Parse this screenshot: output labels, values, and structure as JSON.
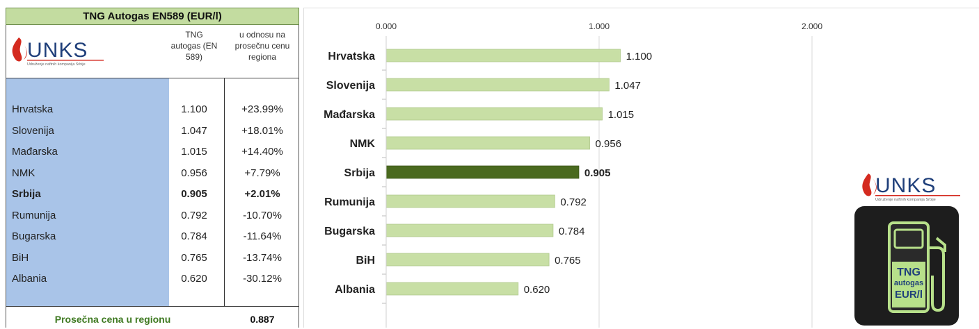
{
  "table": {
    "title": "TNG Autogas EN589 (EUR/l)",
    "col_price_header": "TNG autogas (EN 589)",
    "col_relative_header": "u odnosu na prosečnu cenu regiona",
    "rows": [
      {
        "country": "Hrvatska",
        "price": "1.100",
        "relative": "+23.99%",
        "highlight": false
      },
      {
        "country": "Slovenija",
        "price": "1.047",
        "relative": "+18.01%",
        "highlight": false
      },
      {
        "country": "Mađarska",
        "price": "1.015",
        "relative": "+14.40%",
        "highlight": false
      },
      {
        "country": "NMK",
        "price": "0.956",
        "relative": "+7.79%",
        "highlight": false
      },
      {
        "country": "Srbija",
        "price": "0.905",
        "relative": "+2.01%",
        "highlight": true
      },
      {
        "country": "Rumunija",
        "price": "0.792",
        "relative": "-10.70%",
        "highlight": false
      },
      {
        "country": "Bugarska",
        "price": "0.784",
        "relative": "-11.64%",
        "highlight": false
      },
      {
        "country": "BiH",
        "price": "0.765",
        "relative": "-13.74%",
        "highlight": false
      },
      {
        "country": "Albania",
        "price": "0.620",
        "relative": "-30.12%",
        "highlight": false
      }
    ],
    "average_label": "Prosečna cena u regionu",
    "average_value": "0.887"
  },
  "logo": {
    "name": "UNKS",
    "tagline": "Udruženje naftnih kompanija Srbije"
  },
  "badge": {
    "line1": "TNG",
    "line2": "autogas",
    "line3": "EUR/l"
  },
  "colors": {
    "bar": "#c8dfa5",
    "bar_highlight": "#4a6a1f",
    "title_band": "#c3dca0",
    "name_column": "#a9c4e8",
    "logo_red": "#d42a1f",
    "logo_blue": "#1f3f7a",
    "badge_green": "#b7e08a"
  },
  "chart_data": {
    "type": "bar",
    "orientation": "horizontal",
    "categories": [
      "Hrvatska",
      "Slovenija",
      "Mađarska",
      "NMK",
      "Srbija",
      "Rumunija",
      "Bugarska",
      "BiH",
      "Albania"
    ],
    "values": [
      1.1,
      1.047,
      1.015,
      0.956,
      0.905,
      0.792,
      0.784,
      0.765,
      0.62
    ],
    "value_labels": [
      "1.100",
      "1.047",
      "1.015",
      "0.956",
      "0.905",
      "0.792",
      "0.784",
      "0.765",
      "0.620"
    ],
    "highlight_category": "Srbija",
    "xlim": [
      0,
      2
    ],
    "x_ticks": [
      "0.000",
      "1.000",
      "2.000"
    ],
    "x_axis_position": "top",
    "grid": true,
    "legend": "none"
  }
}
